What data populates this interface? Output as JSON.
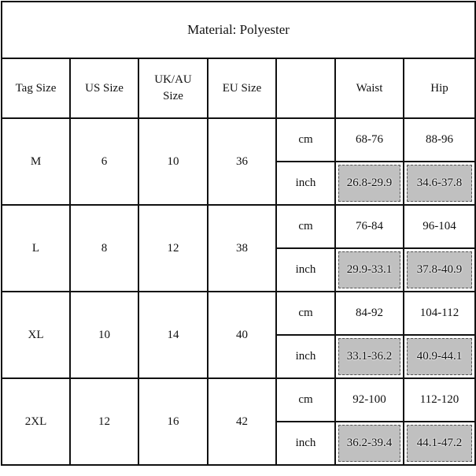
{
  "title": "Material: Polyester",
  "headers": [
    "Tag Size",
    "US Size",
    "UK/AU Size",
    "EU Size",
    "",
    "Waist",
    "Hip"
  ],
  "unit_labels": {
    "cm": "cm",
    "inch": "inch"
  },
  "highlight_color": "#c0c0c0",
  "rows": [
    {
      "tag": "M",
      "us": "6",
      "ukau": "10",
      "eu": "36",
      "waist_cm": "68-76",
      "hip_cm": "88-96",
      "waist_inch": "26.8-29.9",
      "hip_inch": "34.6-37.8"
    },
    {
      "tag": "L",
      "us": "8",
      "ukau": "12",
      "eu": "38",
      "waist_cm": "76-84",
      "hip_cm": "96-104",
      "waist_inch": "29.9-33.1",
      "hip_inch": "37.8-40.9"
    },
    {
      "tag": "XL",
      "us": "10",
      "ukau": "14",
      "eu": "40",
      "waist_cm": "84-92",
      "hip_cm": "104-112",
      "waist_inch": "33.1-36.2",
      "hip_inch": "40.9-44.1"
    },
    {
      "tag": "2XL",
      "us": "12",
      "ukau": "16",
      "eu": "42",
      "waist_cm": "92-100",
      "hip_cm": "112-120",
      "waist_inch": "36.2-39.4",
      "hip_inch": "44.1-47.2"
    }
  ]
}
